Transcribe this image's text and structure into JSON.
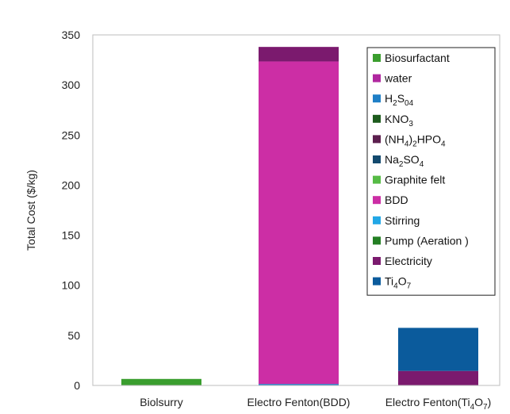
{
  "chart_data": {
    "type": "bar",
    "stacked": true,
    "title": "",
    "xlabel": "",
    "ylabel": "Total Cost ($/kg)",
    "ylim": [
      0,
      350
    ],
    "yticks": [
      0,
      50,
      100,
      150,
      200,
      250,
      300,
      350
    ],
    "categories": [
      "Biolsurry",
      "Electro Fenton(BDD)",
      "Electro Fenton(Ti4O7)"
    ],
    "legend_position": "top-right",
    "grid": false,
    "series": [
      {
        "name": "Biosurfactant",
        "color": "#3a9e2e",
        "values": [
          6.5,
          0,
          0
        ]
      },
      {
        "name": "water",
        "color": "#b0279f",
        "values": [
          0,
          0,
          0
        ]
      },
      {
        "name": "H2S04",
        "color": "#1f7fc6",
        "values": [
          0,
          1.5,
          0
        ]
      },
      {
        "name": "KNO3",
        "color": "#1d5b1d",
        "values": [
          0,
          0,
          0
        ]
      },
      {
        "name": "(NH4)2HPO4",
        "color": "#5c1f4e",
        "values": [
          0,
          0,
          0
        ]
      },
      {
        "name": "Na2SO4",
        "color": "#134a6e",
        "values": [
          0,
          0,
          0
        ]
      },
      {
        "name": "Graphite felt",
        "color": "#56bb45",
        "values": [
          0,
          0,
          0
        ]
      },
      {
        "name": "BDD",
        "color": "#cc2ea5",
        "values": [
          0,
          322,
          0
        ]
      },
      {
        "name": "Stirring",
        "color": "#22a7e6",
        "values": [
          0,
          0,
          0
        ]
      },
      {
        "name": "Pump (Aeration )",
        "color": "#237f23",
        "values": [
          0,
          0,
          0
        ]
      },
      {
        "name": "Electricity",
        "color": "#7b1a6e",
        "values": [
          0,
          14.5,
          14.5
        ]
      },
      {
        "name": "Ti4O7",
        "color": "#0b5b9c",
        "values": [
          0,
          0,
          43
        ]
      }
    ]
  }
}
